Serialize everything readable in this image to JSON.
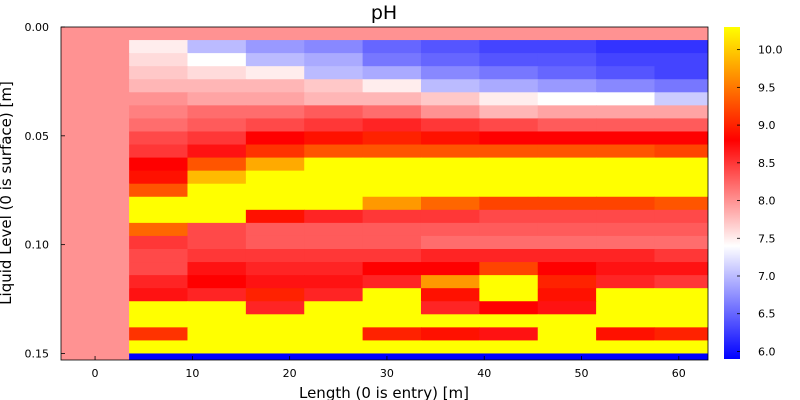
{
  "chart_data": {
    "type": "heatmap",
    "title": "pH",
    "xlabel": "Length (0 is entry) [m]",
    "ylabel": "Liquid Level (0 is surface) [m]",
    "x_ticks": [
      0,
      10,
      20,
      30,
      40,
      50,
      60
    ],
    "y_ticks": [
      "0.00",
      "0.05",
      "0.10",
      "0.15"
    ],
    "xlim": [
      -3.5,
      63
    ],
    "ylim": [
      0.0,
      0.153
    ],
    "colorbar": {
      "min": 5.9,
      "max": 10.3,
      "ticks": [
        "6.0",
        "6.5",
        "7.0",
        "7.5",
        "8.0",
        "8.5",
        "9.0",
        "9.5",
        "10.0"
      ],
      "colormap": [
        "#0000ff",
        "#ffffff",
        "#ff0000",
        "#ffff00"
      ],
      "colormap_stops": [
        5.9,
        7.4,
        8.8,
        10.3
      ]
    },
    "x_edges": [
      -3.5,
      3.5,
      9.5,
      15.5,
      21.5,
      27.5,
      33.5,
      39.5,
      45.5,
      51.5,
      57.5,
      63
    ],
    "y_edges": [
      0.0,
      0.006,
      0.012,
      0.018,
      0.024,
      0.03,
      0.036,
      0.042,
      0.048,
      0.054,
      0.06,
      0.066,
      0.072,
      0.078,
      0.084,
      0.09,
      0.096,
      0.102,
      0.108,
      0.114,
      0.12,
      0.126,
      0.132,
      0.138,
      0.144,
      0.15,
      0.153
    ],
    "values": [
      [
        8.0,
        8.0,
        8.0,
        8.0,
        8.0,
        8.0,
        8.0,
        8.0,
        8.0,
        8.0,
        8.0
      ],
      [
        8.0,
        7.5,
        7.0,
        6.8,
        6.7,
        6.5,
        6.4,
        6.3,
        6.3,
        6.2,
        6.2
      ],
      [
        8.0,
        7.6,
        7.4,
        7.0,
        6.9,
        6.6,
        6.5,
        6.4,
        6.4,
        6.3,
        6.3
      ],
      [
        8.0,
        7.7,
        7.6,
        7.5,
        7.0,
        6.9,
        6.7,
        6.6,
        6.5,
        6.4,
        6.3
      ],
      [
        8.0,
        7.8,
        7.8,
        7.8,
        7.7,
        7.5,
        7.0,
        6.9,
        6.8,
        6.7,
        6.6
      ],
      [
        8.0,
        8.0,
        7.9,
        7.9,
        7.8,
        7.8,
        7.7,
        7.5,
        7.4,
        7.4,
        7.1
      ],
      [
        8.0,
        8.1,
        8.2,
        8.2,
        8.3,
        8.2,
        8.0,
        7.8,
        7.9,
        7.9,
        7.9
      ],
      [
        8.0,
        8.2,
        8.3,
        8.4,
        8.5,
        8.6,
        8.5,
        8.4,
        8.3,
        8.3,
        8.3
      ],
      [
        8.0,
        8.4,
        8.5,
        8.8,
        8.9,
        9.0,
        8.9,
        8.8,
        8.8,
        8.8,
        8.8
      ],
      [
        8.0,
        8.5,
        8.7,
        9.1,
        9.3,
        9.3,
        9.3,
        9.3,
        9.3,
        9.3,
        9.2
      ],
      [
        8.0,
        8.8,
        9.3,
        9.8,
        10.3,
        10.3,
        10.3,
        10.3,
        10.3,
        10.3,
        10.3
      ],
      [
        8.0,
        8.9,
        9.9,
        10.3,
        10.3,
        10.3,
        10.3,
        10.3,
        10.3,
        10.3,
        10.3
      ],
      [
        8.0,
        9.3,
        10.3,
        10.3,
        10.3,
        10.3,
        10.3,
        10.3,
        10.3,
        10.3,
        10.3
      ],
      [
        8.0,
        10.3,
        10.3,
        10.3,
        10.3,
        9.7,
        9.4,
        9.2,
        9.2,
        9.2,
        9.3
      ],
      [
        8.0,
        10.3,
        10.3,
        8.9,
        8.6,
        8.5,
        8.5,
        8.4,
        8.4,
        8.4,
        8.4
      ],
      [
        8.0,
        9.4,
        8.4,
        8.3,
        8.3,
        8.3,
        8.3,
        8.3,
        8.3,
        8.3,
        8.3
      ],
      [
        8.0,
        8.5,
        8.4,
        8.3,
        8.3,
        8.3,
        8.2,
        8.2,
        8.2,
        8.2,
        8.2
      ],
      [
        8.0,
        8.4,
        8.5,
        8.5,
        8.5,
        8.5,
        8.6,
        8.6,
        8.6,
        8.6,
        8.5
      ],
      [
        8.0,
        8.4,
        8.7,
        8.6,
        8.6,
        8.8,
        8.8,
        9.2,
        8.8,
        8.7,
        8.7
      ],
      [
        8.0,
        8.6,
        8.8,
        8.7,
        8.7,
        8.6,
        9.7,
        10.3,
        9.0,
        8.6,
        8.5
      ],
      [
        8.0,
        8.7,
        8.6,
        9.0,
        8.6,
        10.3,
        8.9,
        10.3,
        8.9,
        10.3,
        10.3
      ],
      [
        8.0,
        10.3,
        10.3,
        8.6,
        10.3,
        10.3,
        8.6,
        8.8,
        8.7,
        10.3,
        10.3
      ],
      [
        8.0,
        10.3,
        10.3,
        10.3,
        10.3,
        10.3,
        10.3,
        10.3,
        10.3,
        10.3,
        10.3
      ],
      [
        8.0,
        9.1,
        10.3,
        10.3,
        10.3,
        9.0,
        8.9,
        8.7,
        10.3,
        8.9,
        9.0
      ],
      [
        8.0,
        10.3,
        10.3,
        10.3,
        10.3,
        10.3,
        10.3,
        10.3,
        10.3,
        10.3,
        10.3
      ],
      [
        8.0,
        5.9,
        5.9,
        5.9,
        5.9,
        5.9,
        5.9,
        5.9,
        5.9,
        5.9,
        5.9
      ]
    ]
  }
}
